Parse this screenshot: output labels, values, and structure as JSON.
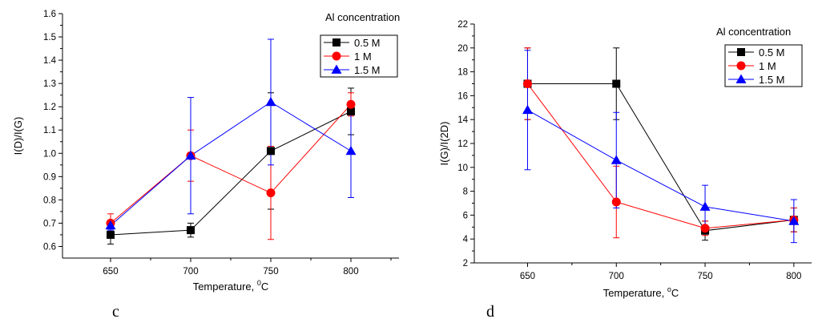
{
  "chart_data": [
    {
      "type": "line",
      "panel_label": "c",
      "xlabel": "Temperature, ",
      "xlabel_sup": "0",
      "xlabel_unit": "C",
      "ylabel": "I(D)/I(G)",
      "xlim": [
        620,
        830
      ],
      "ylim": [
        0.55,
        1.6
      ],
      "x": [
        650,
        700,
        750,
        800
      ],
      "xticks": [
        "650",
        "700",
        "750",
        "800"
      ],
      "yticks": [
        "0.6",
        "0.7",
        "0.8",
        "0.9",
        "1.0",
        "1.1",
        "1.2",
        "1.3",
        "1.4",
        "1.5",
        "1.6"
      ],
      "grid": false,
      "legend_title": "Al concentration",
      "legend_position": "top-right",
      "series": [
        {
          "name": "0.5 M",
          "color": "#000000",
          "marker": "square",
          "values": [
            0.65,
            0.67,
            1.01,
            1.18
          ],
          "err": [
            0.04,
            0.03,
            0.25,
            0.1
          ]
        },
        {
          "name": "1 M",
          "color": "#ff0000",
          "marker": "circle",
          "values": [
            0.7,
            0.99,
            0.83,
            1.21
          ],
          "err": [
            0.04,
            0.11,
            0.2,
            0.05
          ]
        },
        {
          "name": "1.5 M",
          "color": "#0000ff",
          "marker": "triangle",
          "values": [
            0.69,
            0.99,
            1.22,
            1.01
          ],
          "err": [
            0.02,
            0.25,
            0.27,
            0.2
          ]
        }
      ]
    },
    {
      "type": "line",
      "panel_label": "d",
      "xlabel": "Temperature, ",
      "xlabel_sup": "o",
      "xlabel_unit": "C",
      "ylabel": "I(G)/I(2D)",
      "xlim": [
        620,
        810
      ],
      "ylim": [
        2,
        22
      ],
      "x": [
        650,
        700,
        750,
        800
      ],
      "xticks": [
        "650",
        "700",
        "750",
        "800"
      ],
      "yticks": [
        "2",
        "4",
        "6",
        "8",
        "10",
        "12",
        "14",
        "16",
        "18",
        "20",
        "22"
      ],
      "grid": false,
      "legend_title": "Al concentration",
      "legend_position": "top-right",
      "series": [
        {
          "name": "0.5 M",
          "color": "#000000",
          "marker": "square",
          "values": [
            17.0,
            17.0,
            4.7,
            5.6
          ],
          "err": [
            3.0,
            3.0,
            0.8,
            1.0
          ]
        },
        {
          "name": "1 M",
          "color": "#ff0000",
          "marker": "circle",
          "values": [
            17.0,
            7.1,
            4.9,
            5.6
          ],
          "err": [
            3.0,
            3.0,
            0.6,
            1.0
          ]
        },
        {
          "name": "1.5 M",
          "color": "#0000ff",
          "marker": "triangle",
          "values": [
            14.8,
            10.6,
            6.7,
            5.5
          ],
          "err": [
            5.0,
            4.0,
            1.8,
            1.8
          ]
        }
      ]
    }
  ]
}
